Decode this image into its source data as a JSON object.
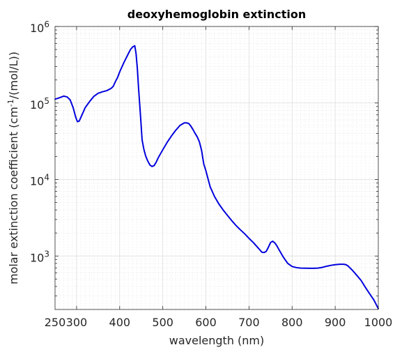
{
  "chart_data": {
    "type": "line",
    "title": "deoxyhemoglobin extinction",
    "xlabel": "wavelength (nm)",
    "ylabel_prefix": "molar extinction coefficient (cm",
    "ylabel_sup": "-1",
    "ylabel_suffix": "/(mol/L))",
    "xlim": [
      250,
      1000
    ],
    "ylim": [
      200,
      1000000
    ],
    "yscale": "log",
    "grid": true,
    "minor_grid": true,
    "line_color": "#0000dd",
    "x_ticks": [
      {
        "value": 300,
        "label": "300"
      },
      {
        "value": 400,
        "label": "400"
      },
      {
        "value": 500,
        "label": "500"
      },
      {
        "value": 600,
        "label": "600"
      },
      {
        "value": 700,
        "label": "700"
      },
      {
        "value": 800,
        "label": "800"
      },
      {
        "value": 900,
        "label": "900"
      },
      {
        "value": 1000,
        "label": "1000"
      }
    ],
    "y_ticks": [
      {
        "value": 1000,
        "base": "10",
        "exp": "3"
      },
      {
        "value": 10000,
        "base": "10",
        "exp": "4"
      },
      {
        "value": 100000,
        "base": "10",
        "exp": "5"
      },
      {
        "value": 1000000,
        "base": "10",
        "exp": "6"
      }
    ],
    "series": [
      {
        "x": [
          250,
          260,
          270,
          278,
          285,
          292,
          298,
          302,
          306,
          310,
          315,
          320,
          330,
          340,
          350,
          360,
          370,
          380,
          385,
          390,
          395,
          400,
          410,
          420,
          425,
          430,
          435,
          438,
          441,
          444,
          448,
          452,
          456,
          460,
          465,
          470,
          475,
          480,
          485,
          490,
          500,
          510,
          520,
          530,
          540,
          550,
          555,
          560,
          565,
          570,
          575,
          580,
          585,
          590,
          595,
          600,
          610,
          620,
          630,
          640,
          650,
          660,
          670,
          680,
          690,
          700,
          710,
          720,
          730,
          735,
          740,
          745,
          750,
          755,
          760,
          765,
          770,
          780,
          790,
          800,
          810,
          820,
          830,
          840,
          850,
          860,
          870,
          880,
          890,
          900,
          910,
          920,
          925,
          930,
          940,
          950,
          960,
          970,
          980,
          990,
          1000
        ],
        "y": [
          112000,
          117000,
          123000,
          120000,
          110000,
          87000,
          65000,
          57000,
          58000,
          65000,
          75000,
          87000,
          104000,
          122000,
          134000,
          140000,
          145000,
          155000,
          165000,
          190000,
          215000,
          255000,
          340000,
          440000,
          500000,
          540000,
          560000,
          440000,
          280000,
          150000,
          72000,
          33000,
          25000,
          20500,
          17500,
          15500,
          14800,
          15200,
          17000,
          19500,
          24500,
          30500,
          37000,
          44000,
          51000,
          55000,
          55000,
          54000,
          50000,
          45000,
          40000,
          36000,
          31000,
          24000,
          16000,
          13000,
          8000,
          6000,
          4800,
          4000,
          3400,
          2900,
          2500,
          2200,
          1950,
          1700,
          1500,
          1300,
          1120,
          1110,
          1150,
          1300,
          1500,
          1560,
          1480,
          1350,
          1200,
          960,
          800,
          730,
          705,
          695,
          693,
          692,
          692,
          695,
          710,
          735,
          755,
          770,
          780,
          780,
          770,
          740,
          650,
          560,
          480,
          390,
          320,
          265,
          205
        ]
      }
    ]
  }
}
